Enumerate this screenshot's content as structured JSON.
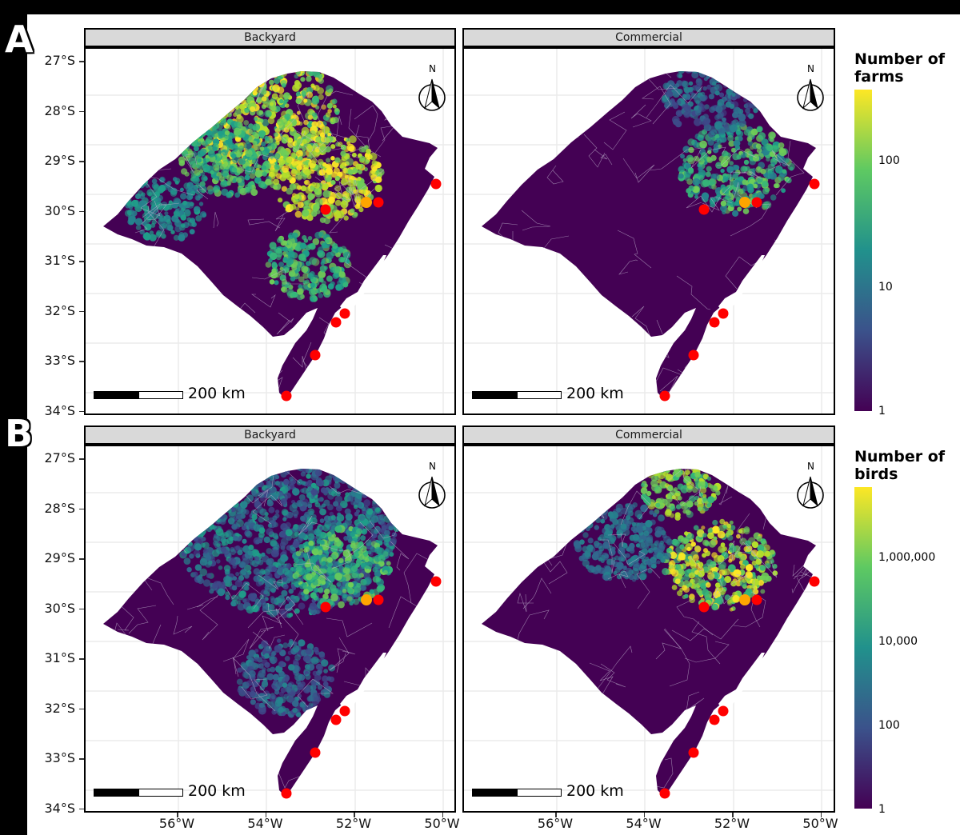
{
  "panel_letters": [
    "A",
    "B"
  ],
  "facets": [
    "Backyard",
    "Commercial"
  ],
  "yaxis_ticks": [
    "27°S",
    "28°S",
    "29°S",
    "30°S",
    "31°S",
    "32°S",
    "33°S",
    "34°S"
  ],
  "xaxis_ticks": [
    "56°W",
    "54°W",
    "52°W",
    "50°W"
  ],
  "north_label": "N",
  "scale_bar_label": "200 km",
  "legend_farms": {
    "title_line1": "Number of",
    "title_line2": "farms",
    "labels": [
      "100",
      "10",
      "1"
    ],
    "scale": "log",
    "colors": [
      "#fde725",
      "#5ec962",
      "#21918c",
      "#3b528b",
      "#440154"
    ]
  },
  "legend_birds": {
    "title_line1": "Number of",
    "title_line2": "birds",
    "labels": [
      "1,000,000",
      "10,000",
      "100",
      "1"
    ],
    "scale": "log",
    "colors": [
      "#fde725",
      "#5ec962",
      "#21918c",
      "#3b528b",
      "#440154"
    ]
  },
  "map_colors": {
    "background_fill": "#440154",
    "municipality_border": "#bdb0cc",
    "outbreak_point": "#ff0000",
    "highlight_point": "#ffa500",
    "lagoon": "#ffffff"
  }
}
